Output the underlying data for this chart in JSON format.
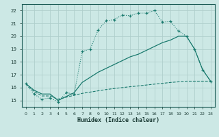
{
  "xlabel": "Humidex (Indice chaleur)",
  "bg_color": "#cce8e5",
  "grid_color": "#b0cfcc",
  "line_color": "#1a7a6e",
  "line1_x": [
    0,
    1,
    2,
    3,
    4,
    5,
    6,
    7,
    8,
    9,
    10,
    11,
    12,
    13,
    14,
    15,
    16,
    17,
    18,
    19,
    20,
    21,
    22,
    23
  ],
  "line1_y": [
    16.3,
    15.5,
    15.1,
    15.2,
    14.9,
    15.6,
    15.5,
    18.8,
    19.0,
    20.5,
    21.2,
    21.3,
    21.65,
    21.6,
    21.8,
    21.8,
    22.0,
    21.1,
    21.15,
    20.4,
    20.0,
    19.0,
    17.4,
    16.5
  ],
  "line2_x": [
    0,
    1,
    2,
    3,
    4,
    5,
    6,
    7,
    8,
    9,
    10,
    11,
    12,
    13,
    14,
    15,
    16,
    17,
    18,
    19,
    20,
    21,
    22,
    23
  ],
  "line2_y": [
    16.3,
    15.8,
    15.5,
    15.5,
    15.0,
    15.3,
    15.6,
    16.4,
    16.8,
    17.2,
    17.5,
    17.8,
    18.1,
    18.4,
    18.6,
    18.9,
    19.2,
    19.5,
    19.7,
    20.0,
    20.0,
    19.0,
    17.4,
    16.5
  ],
  "line3_x": [
    0,
    1,
    2,
    3,
    4,
    5,
    6,
    7,
    8,
    9,
    10,
    11,
    12,
    13,
    14,
    15,
    16,
    17,
    18,
    19,
    20,
    21,
    22,
    23
  ],
  "line3_y": [
    16.3,
    15.7,
    15.35,
    15.35,
    15.1,
    15.25,
    15.4,
    15.55,
    15.65,
    15.75,
    15.85,
    15.93,
    16.0,
    16.07,
    16.13,
    16.2,
    16.27,
    16.33,
    16.4,
    16.45,
    16.5,
    16.5,
    16.5,
    16.5
  ],
  "xlim": [
    -0.5,
    23.5
  ],
  "ylim": [
    14.5,
    22.5
  ],
  "yticks": [
    15,
    16,
    17,
    18,
    19,
    20,
    21,
    22
  ],
  "xticks": [
    0,
    1,
    2,
    3,
    4,
    5,
    6,
    7,
    8,
    9,
    10,
    11,
    12,
    13,
    14,
    15,
    16,
    17,
    18,
    19,
    20,
    21,
    22,
    23
  ]
}
